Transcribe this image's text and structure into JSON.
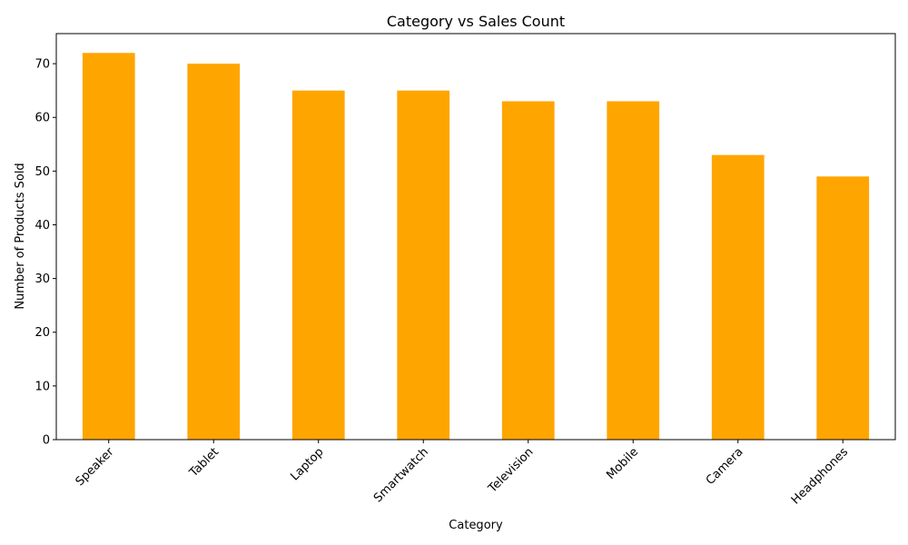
{
  "chart_data": {
    "type": "bar",
    "title": "Category vs Sales Count",
    "xlabel": "Category",
    "ylabel": "Number of Products Sold",
    "categories": [
      "Speaker",
      "Tablet",
      "Laptop",
      "Smartwatch",
      "Television",
      "Mobile",
      "Camera",
      "Headphones"
    ],
    "values": [
      72,
      70,
      65,
      65,
      63,
      63,
      53,
      49
    ],
    "ylim": [
      0,
      75.6
    ],
    "yticks": [
      0,
      10,
      20,
      30,
      40,
      50,
      60,
      70
    ],
    "ytick_labels": [
      "0",
      "10",
      "20",
      "30",
      "40",
      "50",
      "60",
      "70"
    ],
    "bar_color": "#ffa500",
    "grid": false,
    "legend": "none",
    "xtick_rotation_deg": 45
  }
}
